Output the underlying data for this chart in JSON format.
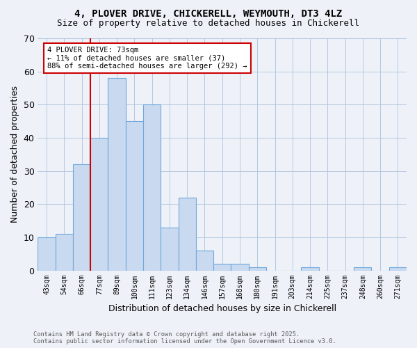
{
  "title1": "4, PLOVER DRIVE, CHICKERELL, WEYMOUTH, DT3 4LZ",
  "title2": "Size of property relative to detached houses in Chickerell",
  "xlabel": "Distribution of detached houses by size in Chickerell",
  "ylabel": "Number of detached properties",
  "bins": [
    "43sqm",
    "54sqm",
    "66sqm",
    "77sqm",
    "89sqm",
    "100sqm",
    "111sqm",
    "123sqm",
    "134sqm",
    "146sqm",
    "157sqm",
    "168sqm",
    "180sqm",
    "191sqm",
    "203sqm",
    "214sqm",
    "225sqm",
    "237sqm",
    "248sqm",
    "260sqm",
    "271sqm"
  ],
  "values": [
    10,
    11,
    32,
    40,
    58,
    45,
    50,
    13,
    22,
    6,
    2,
    2,
    1,
    0,
    0,
    1,
    0,
    0,
    1,
    0,
    1
  ],
  "bar_color": "#c9d9f0",
  "bar_edge_color": "#6fa8dc",
  "vline_pos": 2.5,
  "vline_color": "#cc0000",
  "annotation_text": "4 PLOVER DRIVE: 73sqm\n← 11% of detached houses are smaller (37)\n88% of semi-detached houses are larger (292) →",
  "annotation_box_color": "#ffffff",
  "annotation_box_edge": "#cc0000",
  "footnote": "Contains HM Land Registry data © Crown copyright and database right 2025.\nContains public sector information licensed under the Open Government Licence v3.0.",
  "ylim": [
    0,
    70
  ],
  "yticks": [
    0,
    10,
    20,
    30,
    40,
    50,
    60,
    70
  ],
  "background_color": "#eef2f8"
}
